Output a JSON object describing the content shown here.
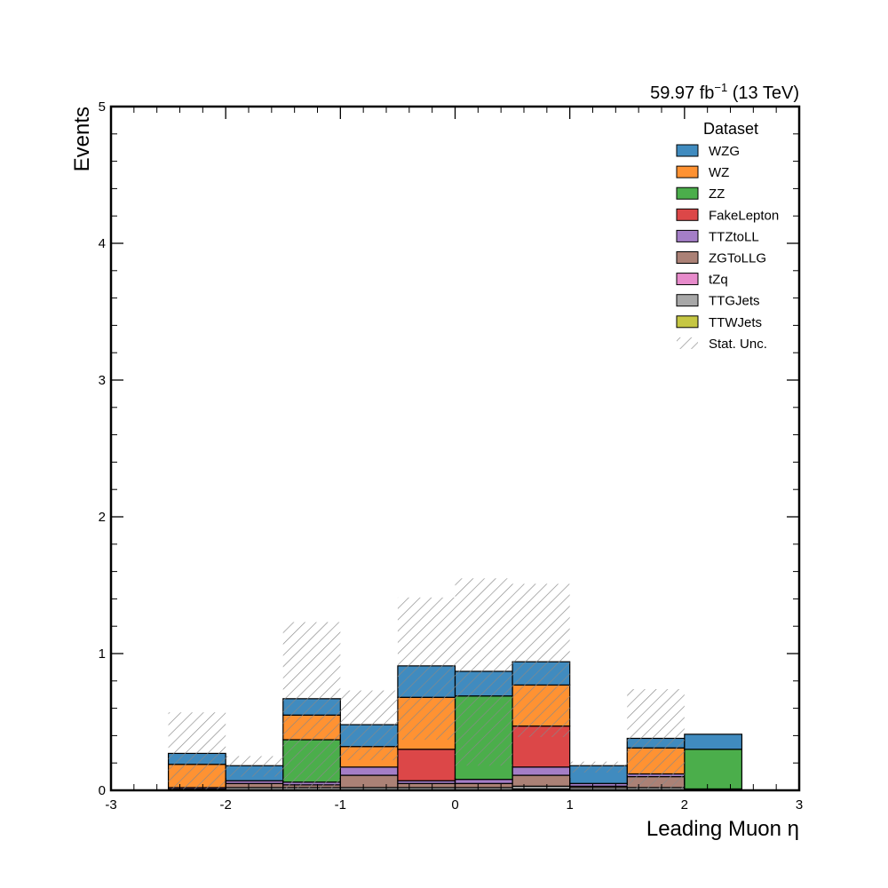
{
  "chart_data": {
    "type": "bar",
    "stacked": true,
    "header_right": {
      "text": "59.97 fb",
      "sup": "−1",
      "suffix": " (13 TeV)"
    },
    "xlabel": "Leading Muon η",
    "ylabel": "Events",
    "xlim": [
      -3,
      3
    ],
    "ylim": [
      0,
      5
    ],
    "x_ticks": [
      -3,
      -2,
      -1,
      0,
      1,
      2,
      3
    ],
    "x_tick_labels": [
      "-3",
      "-2",
      "-1",
      "0",
      "1",
      "2",
      "3"
    ],
    "y_ticks": [
      0,
      1,
      2,
      3,
      4,
      5
    ],
    "y_tick_labels": [
      "0",
      "1",
      "2",
      "3",
      "4",
      "5"
    ],
    "grid": false,
    "legend": {
      "title": "Dataset",
      "placement": "top-right"
    },
    "bin_edges": [
      -2.5,
      -2.0,
      -1.5,
      -1.0,
      -0.5,
      0.0,
      0.5,
      1.0,
      1.5,
      2.0,
      2.5
    ],
    "series": [
      {
        "name": "TTWJets",
        "color": "#bcbd22",
        "values": [
          0.0,
          0.0,
          0.0,
          0.0,
          0.0,
          0.0,
          0.01,
          0.0,
          0.0,
          0.01
        ]
      },
      {
        "name": "TTGJets",
        "color": "#999999",
        "values": [
          0.0,
          0.02,
          0.02,
          0.02,
          0.02,
          0.02,
          0.02,
          0.02,
          0.02,
          0.0
        ]
      },
      {
        "name": "tZq",
        "color": "#e377c2",
        "values": [
          0.0,
          0.0,
          0.0,
          0.0,
          0.0,
          0.0,
          0.0,
          0.0,
          0.0,
          0.0
        ]
      },
      {
        "name": "ZGToLLG",
        "color": "#9c6b5e",
        "values": [
          0.01,
          0.03,
          0.02,
          0.09,
          0.03,
          0.03,
          0.08,
          0.01,
          0.08,
          0.0
        ]
      },
      {
        "name": "TTZtoLL",
        "color": "#9467bd",
        "values": [
          0.01,
          0.02,
          0.02,
          0.06,
          0.02,
          0.03,
          0.06,
          0.02,
          0.02,
          0.0
        ]
      },
      {
        "name": "FakeLepton",
        "color": "#d62728",
        "values": [
          0.0,
          0.0,
          0.0,
          0.0,
          0.23,
          0.0,
          0.3,
          0.0,
          0.0,
          0.0
        ]
      },
      {
        "name": "ZZ",
        "color": "#2ca02c",
        "values": [
          0.0,
          0.0,
          0.31,
          0.0,
          0.0,
          0.61,
          0.0,
          0.0,
          0.0,
          0.29
        ]
      },
      {
        "name": "WZ",
        "color": "#ff7f0e",
        "values": [
          0.17,
          0.0,
          0.18,
          0.15,
          0.38,
          0.0,
          0.3,
          0.0,
          0.19,
          0.0
        ]
      },
      {
        "name": "WZG",
        "color": "#1f77b4",
        "values": [
          0.08,
          0.11,
          0.12,
          0.16,
          0.23,
          0.18,
          0.17,
          0.13,
          0.07,
          0.11
        ]
      }
    ],
    "legend_order": [
      "WZG",
      "WZ",
      "ZZ",
      "FakeLepton",
      "TTZtoLL",
      "ZGToLLG",
      "tZq",
      "TTGJets",
      "TTWJets"
    ],
    "uncertainty": {
      "name": "Stat. Unc.",
      "lower": [
        0.0,
        0.1,
        0.0,
        0.22,
        0.37,
        0.18,
        0.39,
        0.13,
        0.0,
        0.41
      ],
      "upper": [
        0.57,
        0.25,
        1.23,
        0.73,
        1.41,
        1.55,
        1.51,
        0.21,
        0.74,
        0.41
      ]
    }
  }
}
